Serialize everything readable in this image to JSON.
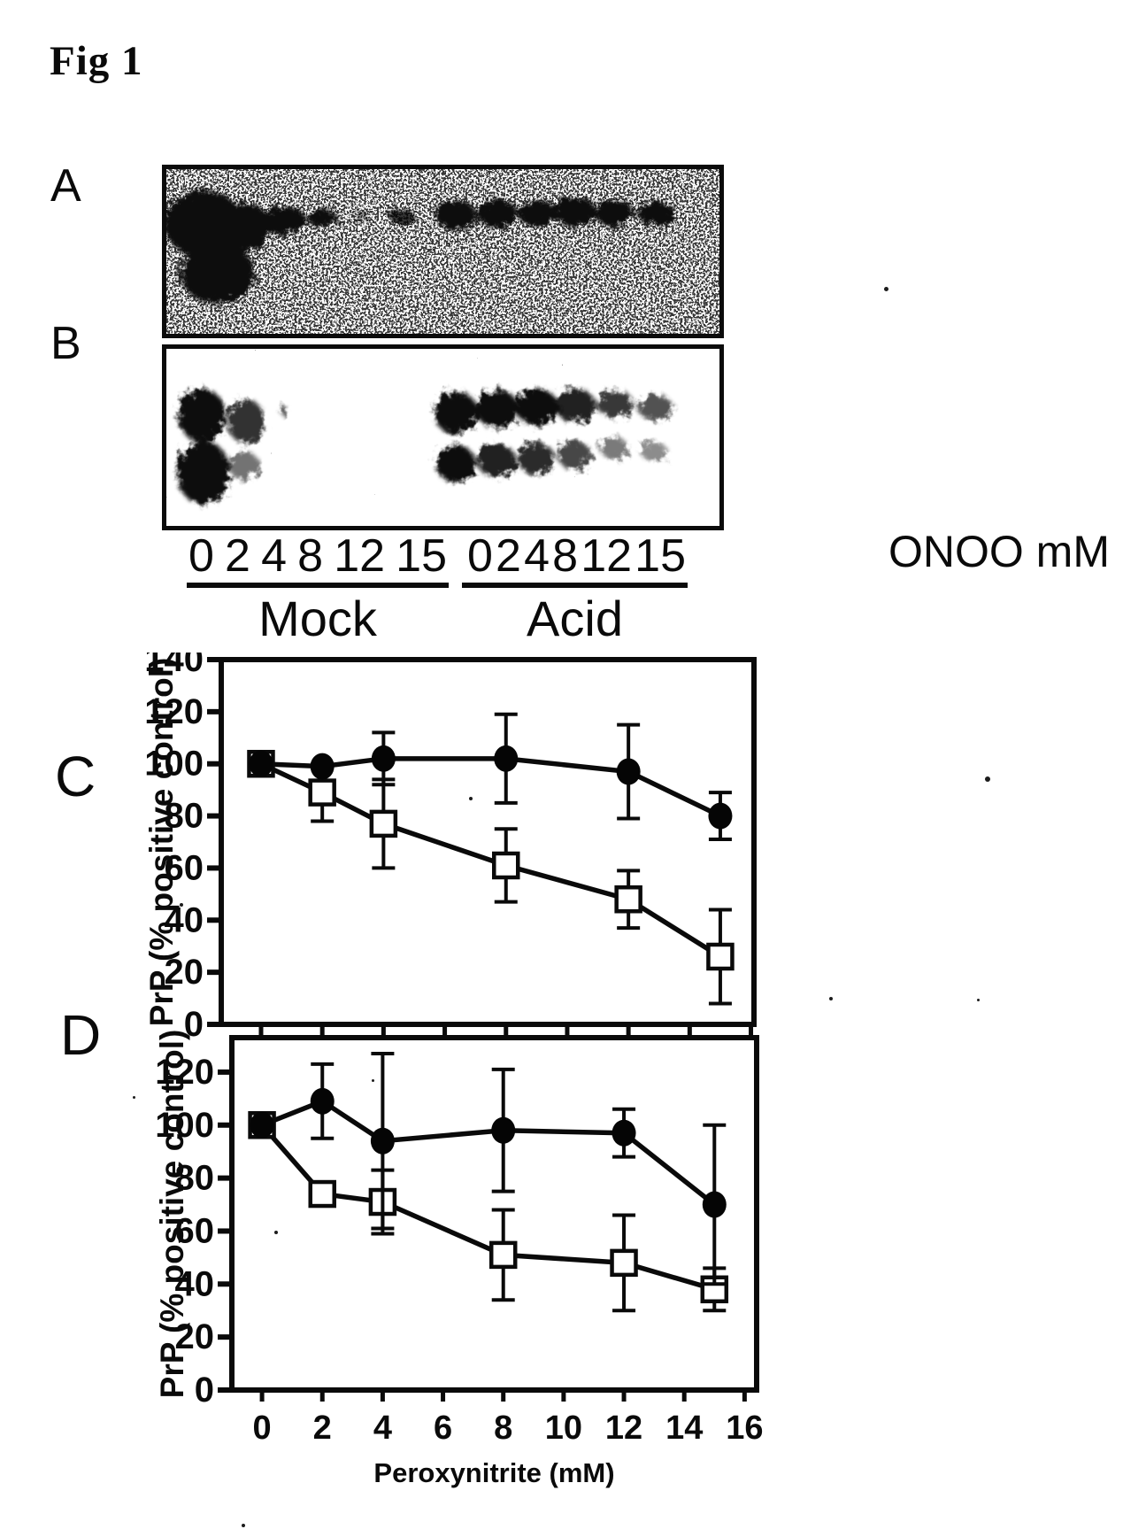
{
  "figure": {
    "title": "Fig 1"
  },
  "panels": {
    "a_label": "A",
    "b_label": "B",
    "c_label": "C",
    "d_label": "D"
  },
  "blot": {
    "concentrations": [
      "0",
      "2",
      "4",
      "8",
      "12",
      "15"
    ],
    "group_labels": {
      "mock": "Mock",
      "acid": "Acid"
    },
    "unit_label": "ONOO mM"
  },
  "chart_data": [
    {
      "id": "C",
      "type": "line",
      "title": "",
      "xlabel": "",
      "ylabel": "PrP (% positive control)",
      "x": [
        0,
        2,
        4,
        8,
        12,
        15
      ],
      "series": [
        {
          "name": "filled-circle-series",
          "marker": "filled-circle",
          "values": [
            100,
            99,
            102,
            102,
            97,
            80
          ],
          "errors": [
            0,
            0,
            10,
            17,
            18,
            9
          ]
        },
        {
          "name": "open-square-series",
          "marker": "open-square",
          "values": [
            100,
            89,
            77,
            61,
            48,
            26
          ],
          "errors": [
            0,
            11,
            17,
            14,
            11,
            18
          ]
        }
      ],
      "ylim": [
        0,
        140
      ],
      "yticks": [
        0,
        20,
        40,
        60,
        80,
        100,
        120,
        140
      ],
      "xlim": [
        -1.3,
        16.1
      ],
      "xticks": [
        0,
        2,
        4,
        6,
        8,
        10,
        12,
        14,
        16
      ],
      "x_tick_labels_visible": false,
      "grid": false,
      "legend": "none"
    },
    {
      "id": "D",
      "type": "line",
      "title": "",
      "xlabel": "Peroxynitrite (mM)",
      "ylabel": "PrP (% positive control)",
      "x": [
        0,
        2,
        4,
        8,
        12,
        15
      ],
      "series": [
        {
          "name": "filled-circle-series",
          "marker": "filled-circle",
          "values": [
            100,
            109,
            94,
            98,
            97,
            70
          ],
          "errors": [
            0,
            14,
            33,
            23,
            9,
            30
          ]
        },
        {
          "name": "open-square-series",
          "marker": "open-square",
          "values": [
            100,
            74,
            71,
            51,
            48,
            38
          ],
          "errors": [
            0,
            4,
            12,
            17,
            18,
            8
          ]
        }
      ],
      "ylim": [
        0,
        133
      ],
      "yticks": [
        0,
        20,
        40,
        60,
        80,
        100,
        120
      ],
      "xlim": [
        -1.0,
        16.4
      ],
      "xticks": [
        0,
        2,
        4,
        6,
        8,
        10,
        12,
        14,
        16
      ],
      "x_tick_labels_visible": true,
      "grid": false,
      "legend": "none"
    }
  ]
}
